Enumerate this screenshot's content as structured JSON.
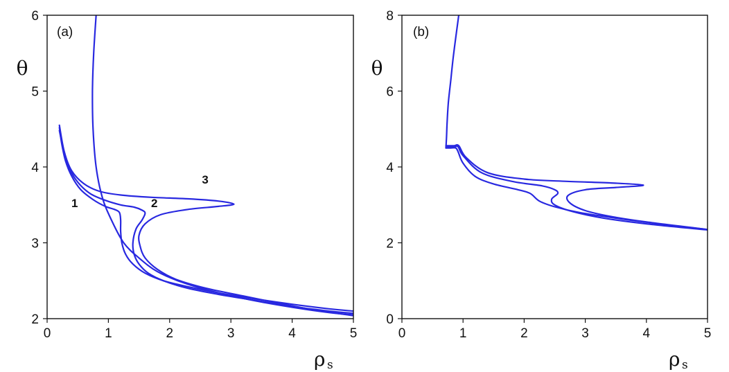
{
  "chart_data": [
    {
      "type": "line",
      "panel_label": "(a)",
      "xlabel": "ρ",
      "xlabel_sub": "s",
      "ylabel": "θ",
      "xlim": [
        0,
        5
      ],
      "ylim": [
        2,
        6
      ],
      "x_ticks": [
        "0",
        "1",
        "2",
        "3",
        "4",
        "5"
      ],
      "y_ticks": [
        "2",
        "3",
        "4",
        "5",
        "6"
      ],
      "grid": false,
      "color": "#2828e0",
      "curve_labels": [
        {
          "text": "1",
          "x": 0.45,
          "y": 3.47
        },
        {
          "text": "2",
          "x": 1.75,
          "y": 3.47
        },
        {
          "text": "3",
          "x": 2.58,
          "y": 3.78
        }
      ],
      "series": [
        {
          "x": [
            0.2,
            0.24,
            0.3,
            0.4,
            0.55,
            0.75,
            0.95,
            1.1,
            1.18,
            1.2,
            1.2,
            1.22,
            1.28,
            1.4,
            1.6,
            1.9,
            2.3,
            2.8,
            3.4,
            4.0,
            4.6,
            5.0
          ],
          "y": [
            4.52,
            4.3,
            4.08,
            3.88,
            3.7,
            3.57,
            3.48,
            3.44,
            3.4,
            3.3,
            3.15,
            3.0,
            2.85,
            2.72,
            2.6,
            2.5,
            2.42,
            2.34,
            2.26,
            2.19,
            2.13,
            2.1
          ]
        },
        {
          "x": [
            0.2,
            0.26,
            0.35,
            0.5,
            0.7,
            0.95,
            1.2,
            1.42,
            1.55,
            1.6,
            1.55,
            1.45,
            1.4,
            1.42,
            1.5,
            1.65,
            1.9,
            2.3,
            2.8,
            3.4,
            4.0,
            4.6,
            5.0
          ],
          "y": [
            4.48,
            4.25,
            4.0,
            3.8,
            3.65,
            3.56,
            3.5,
            3.47,
            3.43,
            3.39,
            3.3,
            3.18,
            3.0,
            2.85,
            2.72,
            2.6,
            2.5,
            2.4,
            2.32,
            2.24,
            2.16,
            2.1,
            2.07
          ]
        },
        {
          "x": [
            0.2,
            0.28,
            0.4,
            0.6,
            0.85,
            1.2,
            1.7,
            2.3,
            2.8,
            3.05,
            2.8,
            2.3,
            1.85,
            1.6,
            1.5,
            1.52,
            1.6,
            1.8,
            2.1,
            2.6,
            3.2,
            3.8,
            4.4,
            5.0
          ],
          "y": [
            4.55,
            4.2,
            3.95,
            3.78,
            3.68,
            3.63,
            3.6,
            3.58,
            3.55,
            3.51,
            3.48,
            3.44,
            3.37,
            3.25,
            3.1,
            2.95,
            2.8,
            2.65,
            2.52,
            2.4,
            2.3,
            2.2,
            2.11,
            2.04
          ]
        },
        {
          "x": [
            0.8,
            0.76,
            0.74,
            0.75,
            0.8,
            0.9,
            1.05,
            1.25,
            1.5,
            1.8,
            2.2,
            2.7,
            3.3,
            4.0,
            4.6,
            5.0
          ],
          "y": [
            6.0,
            5.5,
            5.0,
            4.5,
            4.0,
            3.6,
            3.3,
            3.0,
            2.8,
            2.62,
            2.48,
            2.36,
            2.25,
            2.15,
            2.08,
            2.05
          ]
        }
      ]
    },
    {
      "type": "line",
      "panel_label": "(b)",
      "xlabel": "ρ",
      "xlabel_sub": "s",
      "ylabel": "θ",
      "xlim": [
        0,
        5
      ],
      "ylim": [
        0,
        8
      ],
      "x_ticks": [
        "0",
        "1",
        "2",
        "3",
        "4",
        "5"
      ],
      "y_ticks": [
        "0",
        "2",
        "4",
        "6",
        "8"
      ],
      "grid": false,
      "color": "#2828e0",
      "series": [
        {
          "x": [
            0.93,
            0.88,
            0.84,
            0.8,
            0.76,
            0.74,
            0.73,
            0.72
          ],
          "y": [
            8.0,
            7.4,
            6.9,
            6.3,
            5.7,
            5.2,
            4.8,
            4.5
          ]
        },
        {
          "x": [
            0.72,
            0.8,
            0.88,
            0.92,
            1.0,
            1.2,
            1.5,
            1.9,
            2.1,
            2.25,
            2.5,
            2.9,
            3.5,
            4.2,
            5.0
          ],
          "y": [
            4.5,
            4.5,
            4.5,
            4.4,
            4.1,
            3.75,
            3.55,
            3.4,
            3.3,
            3.1,
            2.95,
            2.8,
            2.65,
            2.5,
            2.35
          ]
        },
        {
          "x": [
            0.72,
            0.85,
            0.92,
            1.0,
            1.3,
            1.8,
            2.3,
            2.5,
            2.55,
            2.45,
            2.5,
            2.8,
            3.3,
            4.0,
            5.0
          ],
          "y": [
            4.53,
            4.53,
            4.53,
            4.3,
            3.85,
            3.62,
            3.5,
            3.4,
            3.3,
            3.15,
            3.0,
            2.82,
            2.65,
            2.5,
            2.34
          ]
        },
        {
          "x": [
            0.72,
            0.85,
            0.93,
            1.05,
            1.4,
            2.0,
            2.7,
            3.4,
            3.95,
            3.5,
            3.0,
            2.72,
            2.75,
            3.0,
            3.4,
            4.0,
            5.0
          ],
          "y": [
            4.56,
            4.56,
            4.56,
            4.25,
            3.85,
            3.68,
            3.62,
            3.58,
            3.52,
            3.46,
            3.4,
            3.25,
            3.05,
            2.85,
            2.7,
            2.55,
            2.35
          ]
        }
      ]
    }
  ]
}
